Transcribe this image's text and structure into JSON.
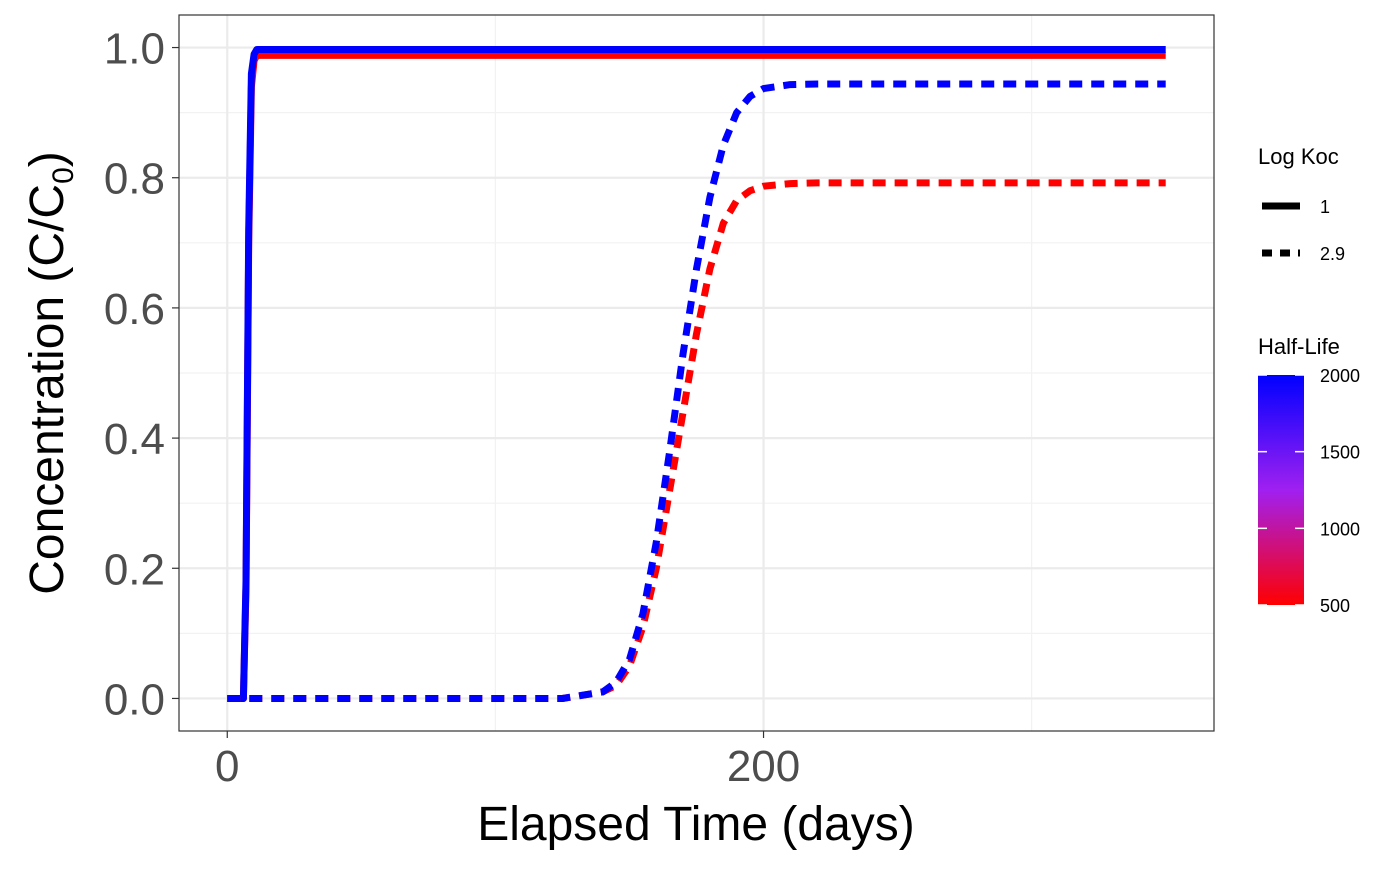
{
  "chart_data": {
    "type": "line",
    "xlabel": "Elapsed Time (days)",
    "ylabel_main": "Concentration (C",
    "ylabel_slash": "/",
    "ylabel_c": "C",
    "ylabel_sub": "0",
    "ylabel_close": ")",
    "xlim": [
      -18,
      368
    ],
    "ylim": [
      -0.05,
      1.05
    ],
    "x_ticks": [
      0,
      200
    ],
    "x_tick_labels": [
      "0",
      "200"
    ],
    "y_ticks": [
      0.0,
      0.2,
      0.4,
      0.6,
      0.8,
      1.0
    ],
    "y_tick_labels": [
      "0.0",
      "0.2",
      "0.4",
      "0.6",
      "0.8",
      "1.0"
    ],
    "grid": true,
    "legend_placement": "right",
    "legend_linetype": {
      "title": "Log Koc",
      "entries": [
        {
          "label": "1",
          "linetype": "solid"
        },
        {
          "label": "2.9",
          "linetype": "dashed"
        }
      ]
    },
    "legend_color": {
      "title": "Half-Life",
      "low_color": "#ff0000",
      "mid_color": "#a020f0",
      "high_color": "#0000ff",
      "ticks": [
        {
          "label": "2000",
          "value": 2000
        },
        {
          "label": "1500",
          "value": 1500
        },
        {
          "label": "1000",
          "value": 1000
        },
        {
          "label": "500",
          "value": 500
        }
      ],
      "min": 500,
      "max": 2000
    },
    "series": [
      {
        "log_koc": "1",
        "half_life": 500,
        "color": "#ff0000",
        "linetype": "solid",
        "x": [
          0,
          6,
          7,
          8,
          9,
          10,
          11,
          350
        ],
        "y": [
          0.0,
          0.0,
          0.17,
          0.7,
          0.94,
          0.98,
          0.988,
          0.988
        ]
      },
      {
        "log_koc": "1",
        "half_life": 2000,
        "color": "#0000ff",
        "linetype": "solid",
        "x": [
          0,
          6,
          7,
          8,
          9,
          10,
          11,
          350
        ],
        "y": [
          0.0,
          0.0,
          0.18,
          0.72,
          0.96,
          0.99,
          0.997,
          0.997
        ]
      },
      {
        "log_koc": "2.9",
        "half_life": 500,
        "color": "#ff0000",
        "linetype": "dashed",
        "x": [
          0,
          125,
          140,
          145,
          150,
          155,
          160,
          165,
          170,
          175,
          180,
          185,
          190,
          195,
          200,
          210,
          220,
          350
        ],
        "y": [
          0.0,
          0.0,
          0.01,
          0.02,
          0.05,
          0.11,
          0.2,
          0.32,
          0.44,
          0.56,
          0.66,
          0.73,
          0.765,
          0.78,
          0.787,
          0.791,
          0.792,
          0.792
        ]
      },
      {
        "log_koc": "2.9",
        "half_life": 2000,
        "color": "#0000ff",
        "linetype": "dashed",
        "x": [
          0,
          125,
          140,
          145,
          150,
          155,
          160,
          165,
          170,
          175,
          180,
          185,
          190,
          195,
          200,
          210,
          220,
          350
        ],
        "y": [
          0.0,
          0.0,
          0.01,
          0.025,
          0.06,
          0.13,
          0.24,
          0.38,
          0.53,
          0.66,
          0.77,
          0.85,
          0.9,
          0.925,
          0.937,
          0.943,
          0.944,
          0.944
        ]
      }
    ]
  }
}
